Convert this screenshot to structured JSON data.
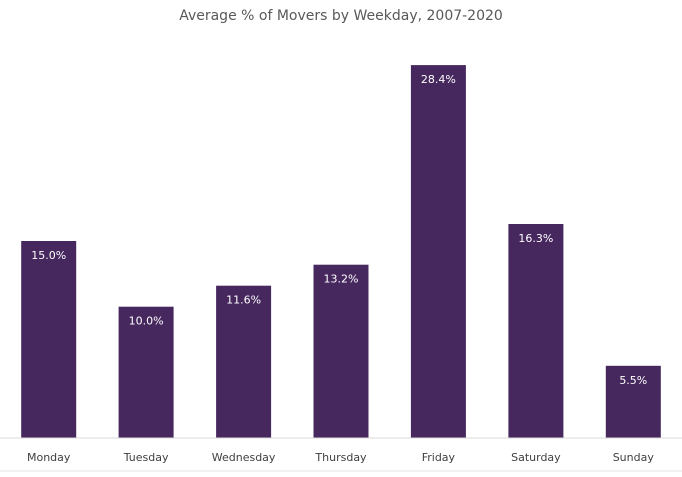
{
  "chart_data": {
    "type": "bar",
    "title": "Average % of Movers by Weekday, 2007-2020",
    "categories": [
      "Monday",
      "Tuesday",
      "Wednesday",
      "Thursday",
      "Friday",
      "Saturday",
      "Sunday"
    ],
    "values": [
      15.0,
      10.0,
      11.6,
      13.2,
      28.4,
      16.3,
      5.5
    ],
    "data_labels": [
      "15.0%",
      "10.0%",
      "11.6%",
      "13.2%",
      "28.4%",
      "16.3%",
      "5.5%"
    ],
    "xlabel": "",
    "ylabel": "",
    "ylim": [
      0,
      30
    ],
    "grid": false,
    "legend": "none",
    "bar_color": "#46285e",
    "label_color": "#ffffff"
  }
}
